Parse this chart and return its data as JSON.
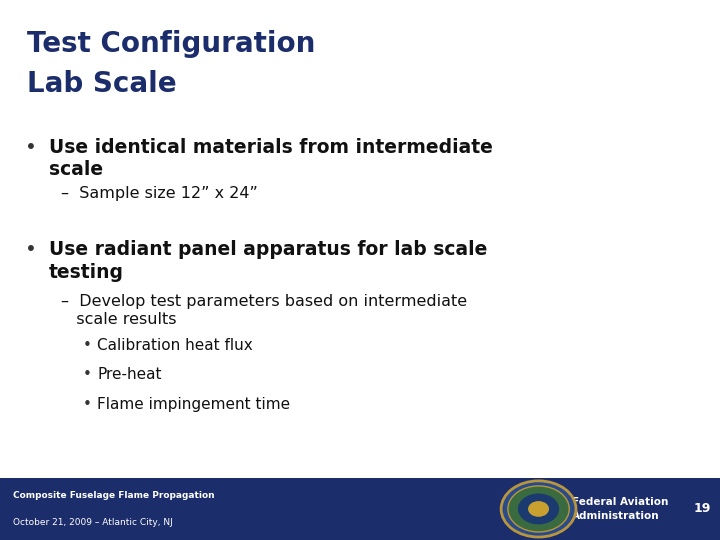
{
  "title_line1": "Test Configuration",
  "title_line2": "Lab Scale",
  "title_color": "#1c2d6b",
  "title_fontsize": 20,
  "background_color": "#ffffff",
  "footer_bg_color": "#1c2d6b",
  "footer_text_left_line1": "Composite Fuselage Flame Propagation",
  "footer_text_left_line2": "October 21, 2009 – Atlantic City, NJ",
  "footer_text_right": "Federal Aviation\nAdministration",
  "footer_page_number": "19",
  "footer_color": "#ffffff",
  "content": [
    {
      "type": "bullet_bold",
      "indent": 0,
      "bullet": "•",
      "text": "Use identical materials from intermediate\nscale",
      "fontsize": 13.5
    },
    {
      "type": "sub_bullet",
      "indent": 1,
      "bullet": "",
      "text": "–  Sample size 12” x 24”",
      "fontsize": 11.5
    },
    {
      "type": "bullet_bold",
      "indent": 0,
      "bullet": "•",
      "text": "Use radiant panel apparatus for lab scale\ntesting",
      "fontsize": 13.5
    },
    {
      "type": "sub_bullet",
      "indent": 1,
      "bullet": "",
      "text": "–  Develop test parameters based on intermediate\n   scale results",
      "fontsize": 11.5
    },
    {
      "type": "sub_sub_bullet",
      "indent": 2,
      "bullet": "•",
      "text": "Calibration heat flux",
      "fontsize": 11
    },
    {
      "type": "sub_sub_bullet",
      "indent": 2,
      "bullet": "•",
      "text": "Pre-heat",
      "fontsize": 11
    },
    {
      "type": "sub_sub_bullet",
      "indent": 2,
      "bullet": "•",
      "text": "Flame impingement time",
      "fontsize": 11
    }
  ]
}
